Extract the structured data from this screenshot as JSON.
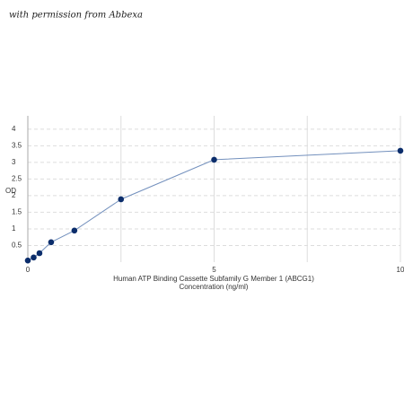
{
  "chart_data": {
    "type": "line",
    "watermark": "with permission from Abbexa",
    "x_label": "Human ATP Binding Cassette Subfamily G Member 1 (ABCG1)",
    "x_label_2": "Concentration (ng/ml)",
    "y_label": "OD",
    "x": [
      0,
      0.156,
      0.312,
      0.625,
      1.25,
      2.5,
      5,
      10
    ],
    "series": [
      {
        "name": "ABCG1",
        "color": "#0b2d6b",
        "line_color": "#7390bd",
        "values": [
          0.05,
          0.14,
          0.27,
          0.6,
          0.95,
          1.89,
          3.08,
          3.35
        ]
      }
    ],
    "xlim": [
      0,
      10
    ],
    "xticks": [
      0,
      5,
      10
    ],
    "xgrid": [
      0,
      2.5,
      5,
      7.5,
      10
    ],
    "ylim": [
      0,
      4.4
    ],
    "yticks": [
      0.5,
      1,
      1.5,
      2,
      2.5,
      3,
      3.5,
      4
    ],
    "grid": true
  }
}
